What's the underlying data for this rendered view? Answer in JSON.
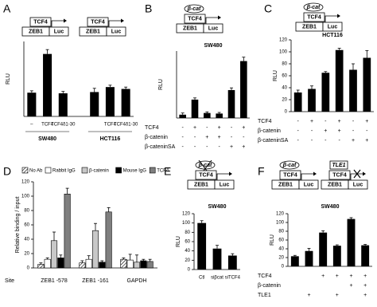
{
  "chart_data": [
    {
      "type": "bar",
      "label": "A",
      "diagrams": [
        {
          "factor": "TCF4",
          "promoter": "ZEB1",
          "reporter": "Luc"
        },
        {
          "factor": "TCF4",
          "promoter": "ZEB1",
          "reporter": "Luc"
        }
      ],
      "ylabel": "RLU",
      "ylim": [
        0,
        120
      ],
      "color": "#000000",
      "groups": [
        {
          "name": "SW480",
          "categories": [
            "–",
            "TCF4",
            "TCF4δ1-30"
          ],
          "values": [
            38,
            100,
            37
          ],
          "errors": [
            3,
            7,
            3
          ]
        },
        {
          "name": "HCT116",
          "categories": [
            null,
            "TCF4",
            "TCF4δ1-30"
          ],
          "values": [
            39,
            47,
            44
          ],
          "errors": [
            6,
            3,
            3
          ]
        }
      ]
    },
    {
      "type": "bar",
      "label": "B",
      "diagrams": [
        {
          "top": "β-cat",
          "factor": "TCF4",
          "promoter": "ZEB1",
          "reporter": "Luc"
        }
      ],
      "title": "SW480",
      "ylabel": "RLU",
      "ylim": [
        0,
        120
      ],
      "color": "#000000",
      "values": [
        6,
        33,
        9,
        8,
        50,
        102
      ],
      "errors": [
        3,
        3,
        2,
        2,
        4,
        7
      ],
      "conditions": [
        {
          "name": "TCF4",
          "marks": [
            "-",
            "+",
            "-",
            "+",
            "-",
            "+"
          ]
        },
        {
          "name": "β-catenin",
          "marks": [
            "-",
            "-",
            "+",
            "+",
            "-",
            "-"
          ]
        },
        {
          "name": "β-cateninSA",
          "marks": [
            "-",
            "-",
            "-",
            "-",
            "+",
            "+"
          ]
        }
      ]
    },
    {
      "type": "bar",
      "label": "C",
      "diagrams": [
        {
          "top": "β-cat",
          "factor": "TCF4",
          "promoter": "ZEB1",
          "reporter": "Luc"
        }
      ],
      "title": "HCT116",
      "ylabel": "RLU",
      "ylim": [
        0,
        120
      ],
      "yticks": [
        0,
        20,
        40,
        60,
        80,
        100,
        120
      ],
      "color": "#000000",
      "values": [
        32,
        38,
        65,
        103,
        70,
        90
      ],
      "errors": [
        4,
        5,
        2,
        3,
        10,
        12
      ],
      "conditions": [
        {
          "name": "TCF4",
          "marks": [
            "-",
            "+",
            "-",
            "+",
            "-",
            "+"
          ]
        },
        {
          "name": "β-catenin",
          "marks": [
            "-",
            "-",
            "+",
            "+",
            "-",
            "-"
          ]
        },
        {
          "name": "β-cateninSA",
          "marks": [
            "-",
            "-",
            "-",
            "-",
            "+",
            "+"
          ]
        }
      ]
    },
    {
      "type": "grouped_bar",
      "label": "D",
      "ylabel": "Relative binding / input",
      "xlabel": "Site",
      "ylim": [
        0,
        120
      ],
      "yticks": [
        0,
        20,
        40,
        60,
        80,
        100,
        120
      ],
      "categories": [
        "ZEB1 -578",
        "ZEB1 -161",
        "GAPDH"
      ],
      "series": [
        {
          "name": "No Ab",
          "color": "#ffffff",
          "pattern": "hatch",
          "values": [
            5,
            7,
            12
          ],
          "errors": [
            2,
            3,
            2
          ]
        },
        {
          "name": "Rabbit IgG",
          "color": "#ffffff",
          "values": [
            12,
            12,
            11
          ],
          "errors": [
            2,
            5,
            8
          ]
        },
        {
          "name": "β-catenin",
          "color": "#c8c8c8",
          "values": [
            38,
            52,
            8
          ],
          "errors": [
            12,
            10,
            10
          ]
        },
        {
          "name": "Mouse IgG",
          "color": "#000000",
          "values": [
            14,
            8,
            10
          ],
          "errors": [
            4,
            2,
            2
          ]
        },
        {
          "name": "TCF4",
          "color": "#7f7f7f",
          "values": [
            103,
            78,
            9
          ],
          "errors": [
            8,
            6,
            3
          ]
        }
      ]
    },
    {
      "type": "bar",
      "label": "E",
      "diagrams": [
        {
          "top": "β-cat",
          "top_crossed": true,
          "factor": "TCF4",
          "promoter": "ZEB1",
          "reporter": "Luc"
        }
      ],
      "title": "SW480",
      "ylabel": "RLU",
      "ylim": [
        0,
        120
      ],
      "yticks": [
        0,
        20,
        40,
        60,
        80,
        100,
        120
      ],
      "color": "#000000",
      "categories": [
        "Ctl",
        "siβcat",
        "siTCF4"
      ],
      "values": [
        100,
        45,
        30
      ],
      "errors": [
        5,
        7,
        4
      ]
    },
    {
      "type": "bar",
      "label": "F",
      "diagrams": [
        {
          "top": "β-cat",
          "factor": "TCF4",
          "promoter": "ZEB1",
          "reporter": "Luc"
        },
        {
          "top": "TLE1",
          "top_shape": "box",
          "blocked": true,
          "factor": "TCF4",
          "promoter": "ZEB1",
          "reporter": "Luc"
        }
      ],
      "title": "SW480",
      "ylabel": "RLU",
      "ylim": [
        0,
        120
      ],
      "yticks": [
        0,
        20,
        40,
        60,
        80,
        100,
        120
      ],
      "color": "#000000",
      "values": [
        23,
        35,
        77,
        47,
        108,
        48
      ],
      "errors": [
        2,
        6,
        4,
        2,
        3,
        2
      ],
      "conditions": [
        {
          "name": "TCF4",
          "marks": [
            null,
            null,
            "+",
            "+",
            "+",
            "+"
          ]
        },
        {
          "name": "β-catenin",
          "marks": [
            null,
            null,
            null,
            null,
            "+",
            "+"
          ]
        },
        {
          "name": "TLE1",
          "marks": [
            null,
            "+",
            null,
            "+",
            null,
            "+"
          ]
        }
      ]
    }
  ]
}
